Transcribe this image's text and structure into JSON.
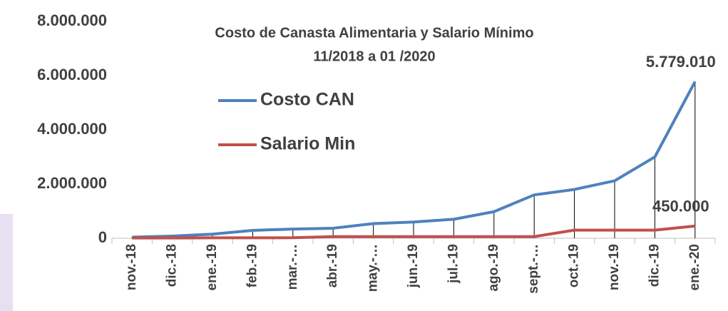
{
  "chart_data": {
    "type": "line",
    "title": "Costo de Canasta Alimentaria y Salario Mínimo",
    "subtitle": "11/2018 a 01 /2020",
    "categories": [
      "nov.-18",
      "dic.-18",
      "ene.-19",
      "feb.-19",
      "mar.-…",
      "abr.-19",
      "may.-…",
      "jun.-19",
      "jul.-19",
      "ago.-19",
      "sept.-…",
      "oct.-19",
      "nov.-19",
      "dic.-19",
      "ene.-20"
    ],
    "series": [
      {
        "name": "Costo CAN",
        "color": "#4f81bd",
        "values": [
          40000,
          80000,
          150000,
          290000,
          340000,
          370000,
          540000,
          600000,
          700000,
          980000,
          1600000,
          1800000,
          2120000,
          3000000,
          5779010
        ],
        "value_labels": [
          null,
          null,
          null,
          null,
          null,
          null,
          null,
          null,
          null,
          null,
          null,
          null,
          null,
          null,
          "5.779.010"
        ]
      },
      {
        "name": "Salario Min",
        "color": "#c0504d",
        "values": [
          10000,
          10000,
          15000,
          15000,
          20000,
          60000,
          60000,
          60000,
          60000,
          60000,
          60000,
          300000,
          300000,
          300000,
          450000
        ],
        "value_labels": [
          null,
          null,
          null,
          null,
          null,
          null,
          null,
          null,
          null,
          null,
          null,
          null,
          null,
          null,
          "450.000"
        ]
      }
    ],
    "ylim": [
      0,
      8000000
    ],
    "yticks": [
      0,
      {
        "value": 2000000,
        "label": "2.000.000"
      },
      {
        "value": 4000000,
        "label": "4.000.000"
      },
      {
        "value": 6000000,
        "label": "6.000.000"
      },
      {
        "value": 8000000,
        "label": "8.000.000"
      }
    ],
    "drop_lines": true
  }
}
